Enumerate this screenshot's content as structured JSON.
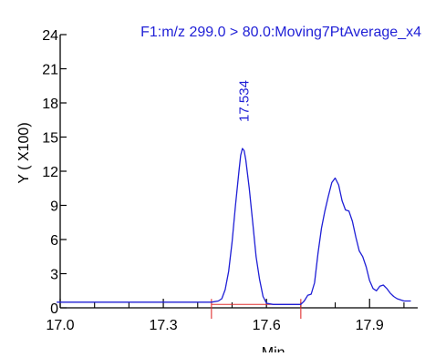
{
  "chart_data": {
    "type": "line",
    "title": "F1:m/z 299.0 > 80.0:Moving7PtAverage_x4",
    "xlabel": "Min",
    "ylabel": "Y ( X100)",
    "xlim": [
      17.0,
      18.04
    ],
    "ylim": [
      0,
      24
    ],
    "x_ticks": [
      "17.0",
      "17.3",
      "17.6",
      "17.9"
    ],
    "y_ticks": [
      "0",
      "3",
      "6",
      "9",
      "12",
      "15",
      "18",
      "21",
      "24"
    ],
    "peak_label": "17.534",
    "grid": false,
    "colors": {
      "series": "#1f1fd6",
      "baseline": "#e03030",
      "title": "#1f1fd6",
      "axis": "#000000"
    },
    "series": [
      {
        "x": [
          16.99,
          17.05,
          17.1,
          17.15,
          17.2,
          17.25,
          17.3,
          17.35,
          17.4,
          17.44,
          17.46,
          17.47,
          17.48,
          17.49,
          17.5,
          17.51,
          17.52,
          17.525,
          17.53,
          17.535,
          17.54,
          17.55,
          17.56,
          17.57,
          17.58,
          17.59,
          17.6,
          17.62,
          17.64,
          17.66,
          17.68,
          17.7,
          17.71,
          17.72,
          17.73,
          17.74,
          17.75,
          17.76,
          17.77,
          17.78,
          17.79,
          17.8,
          17.81,
          17.82,
          17.83,
          17.84,
          17.85,
          17.86,
          17.87,
          17.88,
          17.89,
          17.9,
          17.91,
          17.92,
          17.93,
          17.94,
          17.95,
          17.96,
          17.97,
          17.98,
          17.99,
          18.0,
          18.02
        ],
        "y": [
          0.5,
          0.5,
          0.5,
          0.5,
          0.5,
          0.5,
          0.5,
          0.5,
          0.5,
          0.5,
          0.6,
          0.8,
          1.6,
          3.2,
          5.8,
          9.0,
          12.0,
          13.4,
          14.0,
          13.8,
          13.0,
          10.5,
          7.5,
          4.5,
          2.5,
          1.0,
          0.4,
          0.3,
          0.3,
          0.3,
          0.3,
          0.3,
          0.6,
          1.1,
          1.2,
          2.2,
          4.8,
          7.0,
          8.5,
          9.8,
          11.0,
          11.4,
          10.8,
          9.4,
          8.6,
          8.5,
          7.6,
          6.2,
          5.0,
          4.5,
          3.6,
          2.4,
          1.7,
          1.5,
          1.9,
          2.0,
          1.7,
          1.3,
          1.0,
          0.8,
          0.7,
          0.6,
          0.6
        ]
      }
    ],
    "integration": {
      "start": 17.44,
      "end": 17.7
    }
  }
}
